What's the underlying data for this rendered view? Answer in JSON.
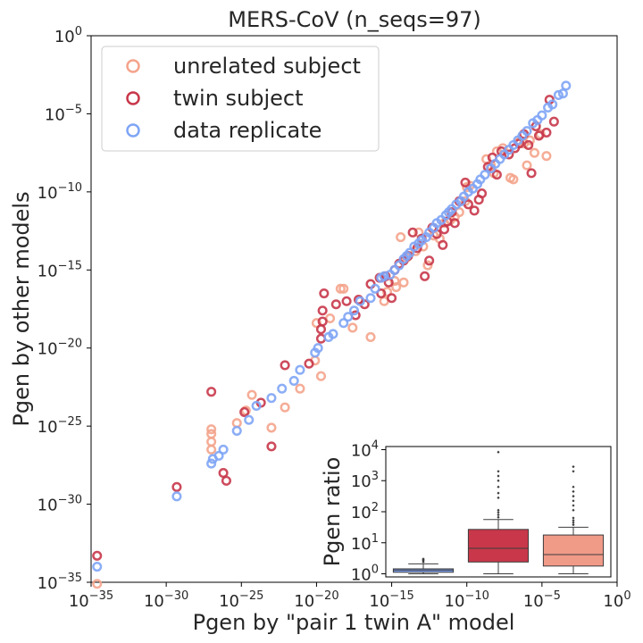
{
  "chart_data": [
    {
      "type": "scatter",
      "title": "MERS-CoV (n_seqs=97)",
      "xlabel": "Pgen by \"pair 1 twin A\" model",
      "ylabel": "Pgen by other models",
      "xscale": "log",
      "yscale": "log",
      "xlim": [
        1e-35,
        1
      ],
      "ylim": [
        1e-35,
        1
      ],
      "xtick_exponents": [
        "−35",
        "−30",
        "−25",
        "−20",
        "−15",
        "−10",
        "−5",
        "0"
      ],
      "ytick_exponents": [
        "−35",
        "−30",
        "−25",
        "−20",
        "−15",
        "−10",
        "−5",
        "0"
      ],
      "tick_base": "10",
      "legend_position": "upper-left",
      "series": [
        {
          "name": "unrelated subject",
          "color": "#f4a48c",
          "points": [
            [
              -34.6,
              -35.1
            ],
            [
              -27.0,
              -26.5
            ],
            [
              -27.0,
              -26.0
            ],
            [
              -27.0,
              -25.5
            ],
            [
              -27.0,
              -25.2
            ],
            [
              -25.3,
              -24.8
            ],
            [
              -24.7,
              -24.0
            ],
            [
              -24.3,
              -23.0
            ],
            [
              -23.0,
              -25.1
            ],
            [
              -22.1,
              -23.8
            ],
            [
              -21.1,
              -22.6
            ],
            [
              -20.1,
              -20.8
            ],
            [
              -20.0,
              -18.4
            ],
            [
              -19.7,
              -21.8
            ],
            [
              -19.1,
              -18.1
            ],
            [
              -18.4,
              -16.2
            ],
            [
              -18.2,
              -16.2
            ],
            [
              -17.6,
              -18.7
            ],
            [
              -16.4,
              -19.3
            ],
            [
              -15.5,
              -17.0
            ],
            [
              -15.3,
              -16.4
            ],
            [
              -14.8,
              -15.7
            ],
            [
              -14.7,
              -16.1
            ],
            [
              -14.4,
              -12.9
            ],
            [
              -14.2,
              -15.8
            ],
            [
              -14.0,
              -14.2
            ],
            [
              -13.4,
              -13.8
            ],
            [
              -13.2,
              -12.6
            ],
            [
              -12.9,
              -13.5
            ],
            [
              -12.6,
              -14.7
            ],
            [
              -12.2,
              -12.8
            ],
            [
              -11.8,
              -13.0
            ],
            [
              -11.5,
              -12.0
            ],
            [
              -11.1,
              -11.8
            ],
            [
              -10.8,
              -11.6
            ],
            [
              -10.5,
              -11.3
            ],
            [
              -10.1,
              -10.6
            ],
            [
              -10.0,
              -9.7
            ],
            [
              -9.8,
              -9.6
            ],
            [
              -8.7,
              -7.9
            ],
            [
              -8.4,
              -8.3
            ],
            [
              -8.2,
              -8.8
            ],
            [
              -8.0,
              -7.4
            ],
            [
              -7.6,
              -7.2
            ],
            [
              -7.1,
              -9.1
            ],
            [
              -6.9,
              -9.2
            ],
            [
              -6.5,
              -6.8
            ],
            [
              -6.2,
              -6.9
            ],
            [
              -6.0,
              -8.3
            ],
            [
              -5.8,
              -6.7
            ],
            [
              -5.5,
              -7.5
            ],
            [
              -5.1,
              -6.3
            ],
            [
              -4.7,
              -7.7
            ]
          ]
        },
        {
          "name": "twin subject",
          "color": "#c8374a",
          "points": [
            [
              -34.6,
              -33.3
            ],
            [
              -29.3,
              -28.9
            ],
            [
              -27.0,
              -22.8
            ],
            [
              -26.2,
              -28.0
            ],
            [
              -26.0,
              -28.5
            ],
            [
              -24.8,
              -24.1
            ],
            [
              -23.7,
              -23.5
            ],
            [
              -23.0,
              -26.3
            ],
            [
              -22.1,
              -21.1
            ],
            [
              -20.5,
              -21.0
            ],
            [
              -19.7,
              -19.4
            ],
            [
              -19.7,
              -18.8
            ],
            [
              -19.6,
              -18.3
            ],
            [
              -19.6,
              -17.6
            ],
            [
              -19.5,
              -16.5
            ],
            [
              -18.7,
              -17.2
            ],
            [
              -18.0,
              -17.0
            ],
            [
              -17.4,
              -17.9
            ],
            [
              -17.2,
              -16.9
            ],
            [
              -16.8,
              -17.2
            ],
            [
              -16.4,
              -15.9
            ],
            [
              -15.8,
              -15.5
            ],
            [
              -15.7,
              -16.5
            ],
            [
              -15.4,
              -15.4
            ],
            [
              -15.2,
              -15.8
            ],
            [
              -15.0,
              -16.8
            ],
            [
              -14.8,
              -15.0
            ],
            [
              -14.5,
              -14.6
            ],
            [
              -14.2,
              -14.4
            ],
            [
              -13.9,
              -14.1
            ],
            [
              -13.6,
              -12.6
            ],
            [
              -13.3,
              -13.6
            ],
            [
              -13.0,
              -13.0
            ],
            [
              -12.8,
              -15.4
            ],
            [
              -12.5,
              -14.4
            ],
            [
              -12.3,
              -12.3
            ],
            [
              -12.0,
              -12.7
            ],
            [
              -11.6,
              -13.4
            ],
            [
              -11.5,
              -12.4
            ],
            [
              -11.3,
              -11.9
            ],
            [
              -11.0,
              -11.3
            ],
            [
              -10.8,
              -12.0
            ],
            [
              -10.5,
              -10.6
            ],
            [
              -10.1,
              -9.4
            ],
            [
              -9.9,
              -10.8
            ],
            [
              -9.5,
              -11.2
            ],
            [
              -9.2,
              -10.5
            ],
            [
              -9.0,
              -10.1
            ],
            [
              -8.6,
              -8.4
            ],
            [
              -8.3,
              -7.8
            ],
            [
              -8.0,
              -8.9
            ],
            [
              -7.7,
              -7.4
            ],
            [
              -7.2,
              -7.6
            ],
            [
              -6.8,
              -7.2
            ],
            [
              -6.5,
              -6.9
            ],
            [
              -6.2,
              -6.3
            ],
            [
              -5.9,
              -7.0
            ],
            [
              -5.7,
              -8.8
            ],
            [
              -5.4,
              -5.8
            ],
            [
              -5.2,
              -6.4
            ],
            [
              -4.7,
              -6.2
            ],
            [
              -4.5,
              -4.1
            ],
            [
              -4.2,
              -5.5
            ]
          ]
        },
        {
          "name": "data replicate",
          "color": "#7fa5f5",
          "points": [
            [
              -34.6,
              -34.0
            ],
            [
              -29.3,
              -29.5
            ],
            [
              -27.0,
              -27.4
            ],
            [
              -26.9,
              -27.1
            ],
            [
              -26.5,
              -26.9
            ],
            [
              -26.2,
              -26.5
            ],
            [
              -25.3,
              -25.3
            ],
            [
              -24.5,
              -24.6
            ],
            [
              -24.0,
              -23.7
            ],
            [
              -23.0,
              -23.2
            ],
            [
              -22.3,
              -22.6
            ],
            [
              -21.5,
              -22.1
            ],
            [
              -21.1,
              -21.4
            ],
            [
              -20.1,
              -20.3
            ],
            [
              -19.9,
              -20.0
            ],
            [
              -19.2,
              -19.3
            ],
            [
              -18.9,
              -19.1
            ],
            [
              -18.2,
              -18.4
            ],
            [
              -17.9,
              -18.0
            ],
            [
              -17.5,
              -17.6
            ],
            [
              -17.1,
              -17.0
            ],
            [
              -16.4,
              -16.8
            ],
            [
              -16.1,
              -16.2
            ],
            [
              -15.7,
              -15.5
            ],
            [
              -15.5,
              -15.4
            ],
            [
              -15.1,
              -15.3
            ],
            [
              -14.8,
              -15.0
            ],
            [
              -14.5,
              -14.7
            ],
            [
              -14.2,
              -14.3
            ],
            [
              -14.0,
              -14.1
            ],
            [
              -13.8,
              -13.9
            ],
            [
              -13.5,
              -13.5
            ],
            [
              -13.2,
              -13.3
            ],
            [
              -13.0,
              -13.1
            ],
            [
              -12.7,
              -12.9
            ],
            [
              -12.5,
              -12.6
            ],
            [
              -12.2,
              -12.3
            ],
            [
              -12.0,
              -12.0
            ],
            [
              -11.7,
              -11.8
            ],
            [
              -11.4,
              -11.5
            ],
            [
              -11.2,
              -11.3
            ],
            [
              -11.0,
              -11.1
            ],
            [
              -10.7,
              -10.8
            ],
            [
              -10.4,
              -10.6
            ],
            [
              -10.2,
              -10.3
            ],
            [
              -9.9,
              -10.0
            ],
            [
              -9.6,
              -9.8
            ],
            [
              -9.3,
              -9.5
            ],
            [
              -9.1,
              -9.2
            ],
            [
              -8.8,
              -8.9
            ],
            [
              -8.4,
              -8.5
            ],
            [
              -8.1,
              -8.2
            ],
            [
              -7.8,
              -7.9
            ],
            [
              -7.5,
              -7.6
            ],
            [
              -7.2,
              -7.3
            ],
            [
              -6.9,
              -7.0
            ],
            [
              -6.6,
              -6.7
            ],
            [
              -6.3,
              -6.4
            ],
            [
              -6.0,
              -6.1
            ],
            [
              -5.6,
              -5.6
            ],
            [
              -5.3,
              -5.4
            ],
            [
              -5.0,
              -5.1
            ],
            [
              -4.6,
              -4.6
            ],
            [
              -4.3,
              -4.4
            ],
            [
              -3.9,
              -3.8
            ],
            [
              -3.6,
              -3.7
            ],
            [
              -3.4,
              -3.2
            ]
          ]
        }
      ]
    },
    {
      "type": "box",
      "ylabel": "Pgen ratio",
      "yscale": "log",
      "ylim_exponent": [
        -0.1,
        4.1
      ],
      "ytick_exponents": [
        "0",
        "1",
        "2",
        "3",
        "4"
      ],
      "tick_base": "10",
      "boxes": [
        {
          "name": "data replicate",
          "color": "#7fa5f5",
          "whisker_low_exp": 0.0,
          "q1_exp": 0.05,
          "median_exp": 0.12,
          "q3_exp": 0.16,
          "whisker_high_exp": 0.32,
          "outliers_exp": [
            0.38,
            0.42,
            0.45,
            0.48
          ]
        },
        {
          "name": "twin subject",
          "color": "#c8374a",
          "whisker_low_exp": 0.0,
          "q1_exp": 0.38,
          "median_exp": 0.82,
          "q3_exp": 1.43,
          "whisker_high_exp": 1.75,
          "outliers_exp": [
            1.82,
            1.9,
            1.98,
            2.05,
            2.45,
            2.6,
            2.8,
            3.0,
            3.15,
            3.3,
            3.92
          ]
        },
        {
          "name": "unrelated subject",
          "color": "#f09a88",
          "whisker_low_exp": 0.0,
          "q1_exp": 0.25,
          "median_exp": 0.62,
          "q3_exp": 1.25,
          "whisker_high_exp": 1.5,
          "outliers_exp": [
            1.58,
            1.65,
            1.72,
            1.8,
            2.05,
            2.2,
            2.35,
            2.5,
            2.65,
            2.8,
            3.3,
            3.45
          ]
        }
      ]
    }
  ]
}
